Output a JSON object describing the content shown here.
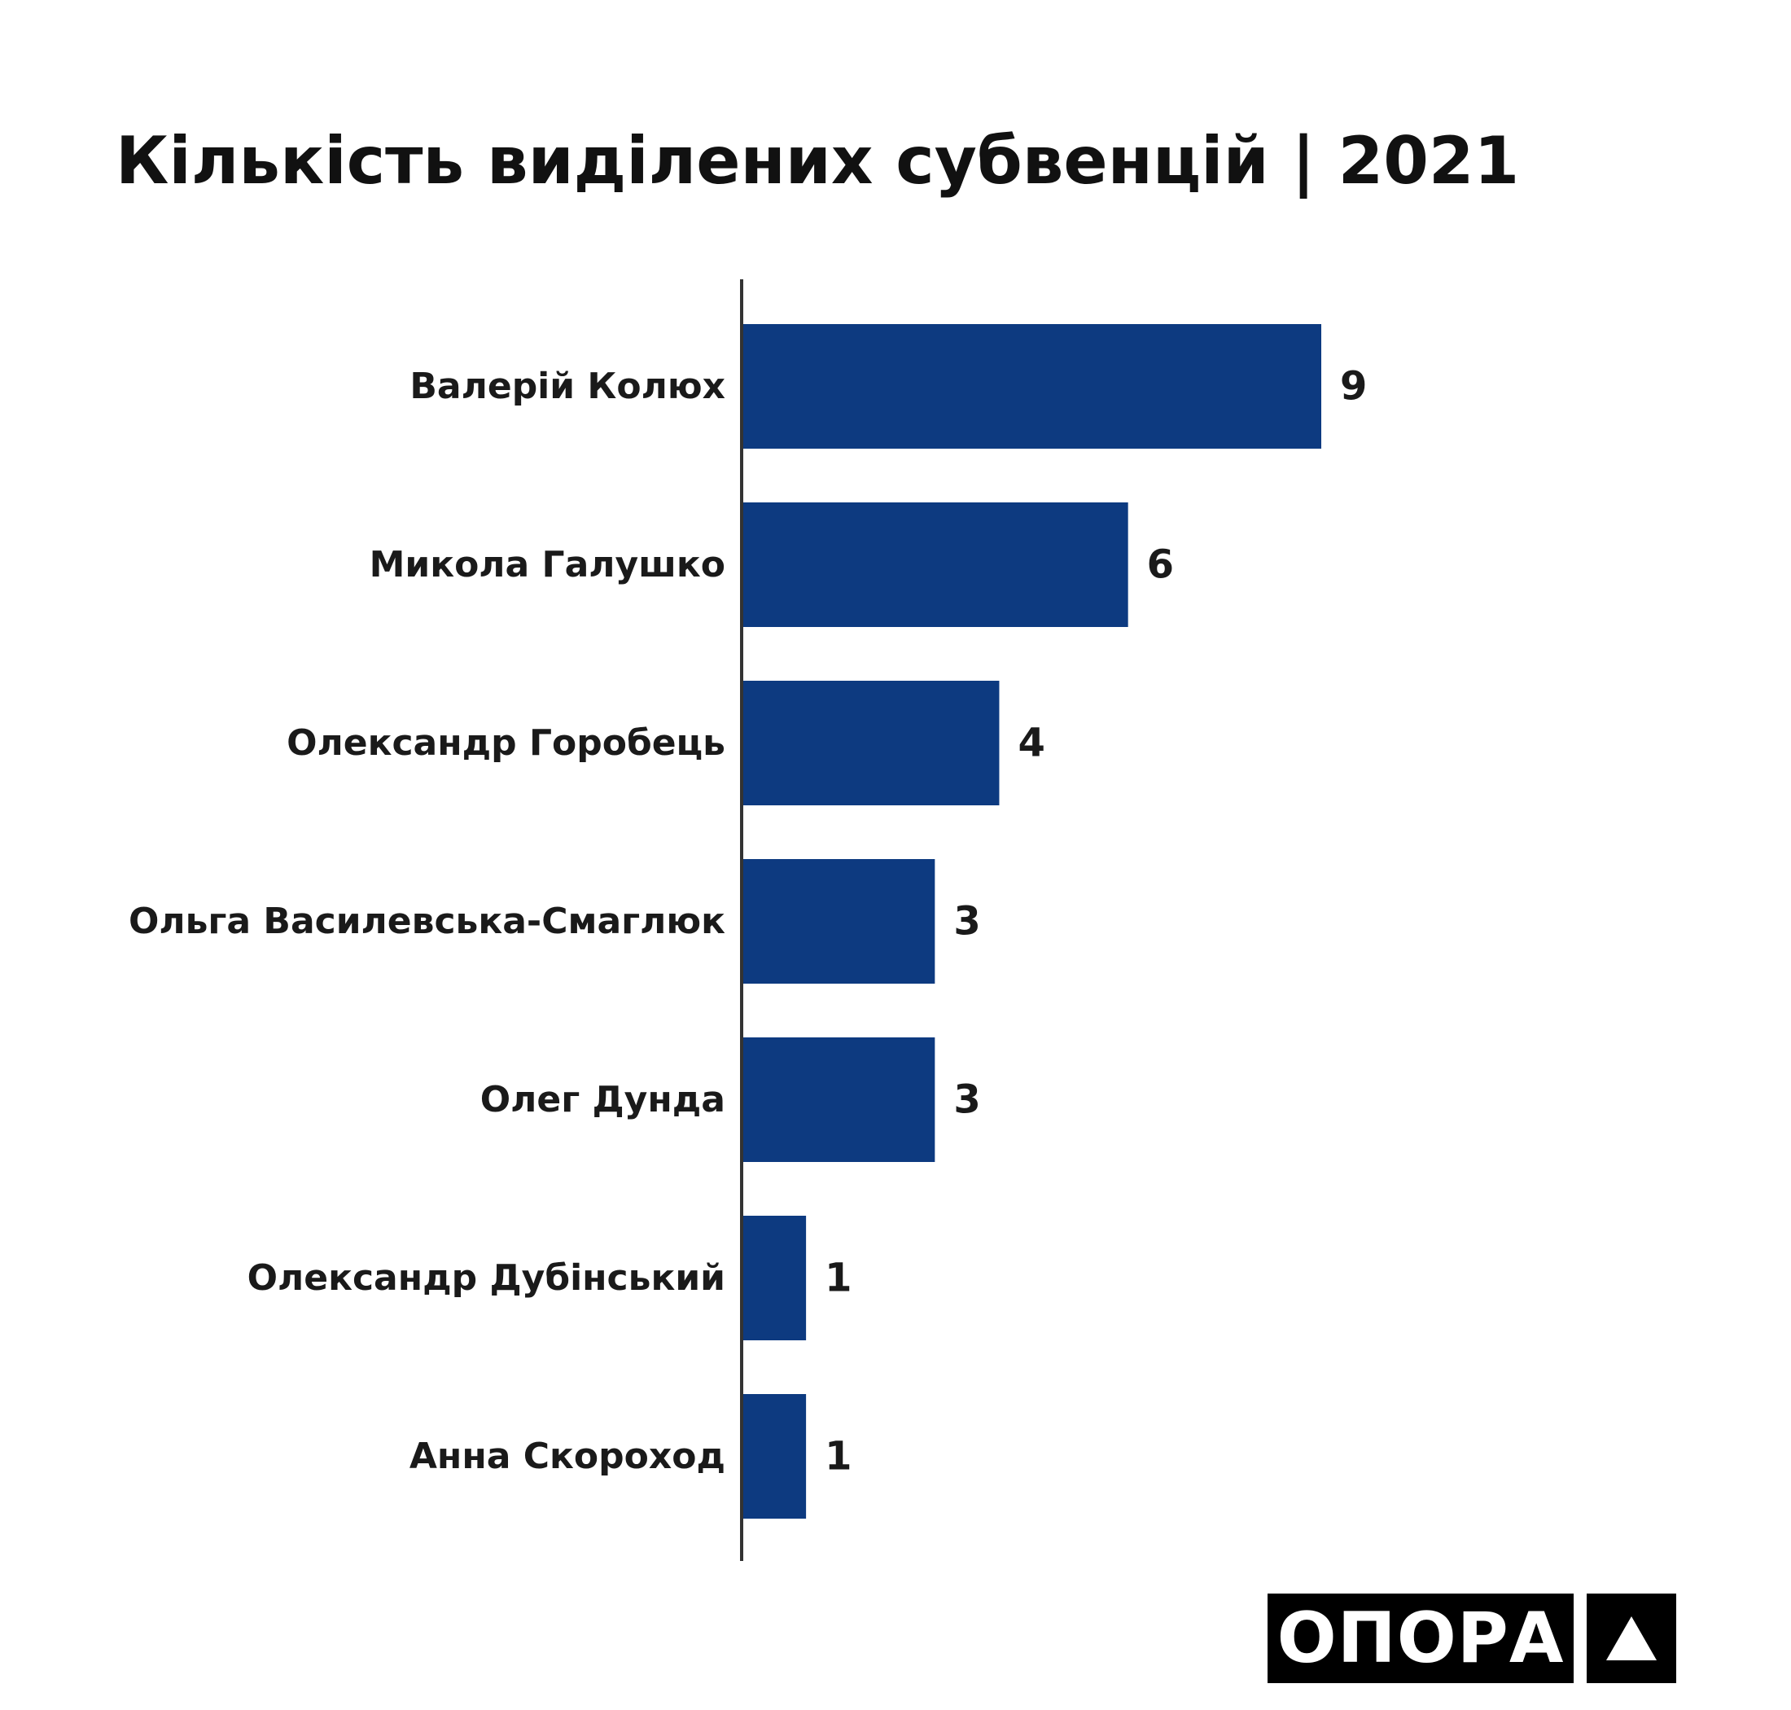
{
  "chart_data": {
    "type": "bar",
    "orientation": "horizontal",
    "title": "Кількість виділених субвенцій | 2021",
    "categories": [
      "Валерій Колюх",
      "Микола Галушко",
      "Олександр Горобець",
      "Ольга Василевська-Смаглюк",
      "Олег Дунда",
      "Олександр Дубінський",
      "Анна Скороход"
    ],
    "values": [
      9,
      6,
      4,
      3,
      3,
      1,
      1
    ],
    "value_labels": [
      "9",
      "6",
      "4",
      "3",
      "3",
      "1",
      "1"
    ],
    "xlim": [
      0,
      9
    ],
    "grid": false,
    "legend": "none",
    "bar_color": "#0d3a80",
    "axis_color": "#333333"
  },
  "branding": {
    "logo_text": "ОПОРА",
    "logo_mark_icon": "triangle-icon"
  }
}
